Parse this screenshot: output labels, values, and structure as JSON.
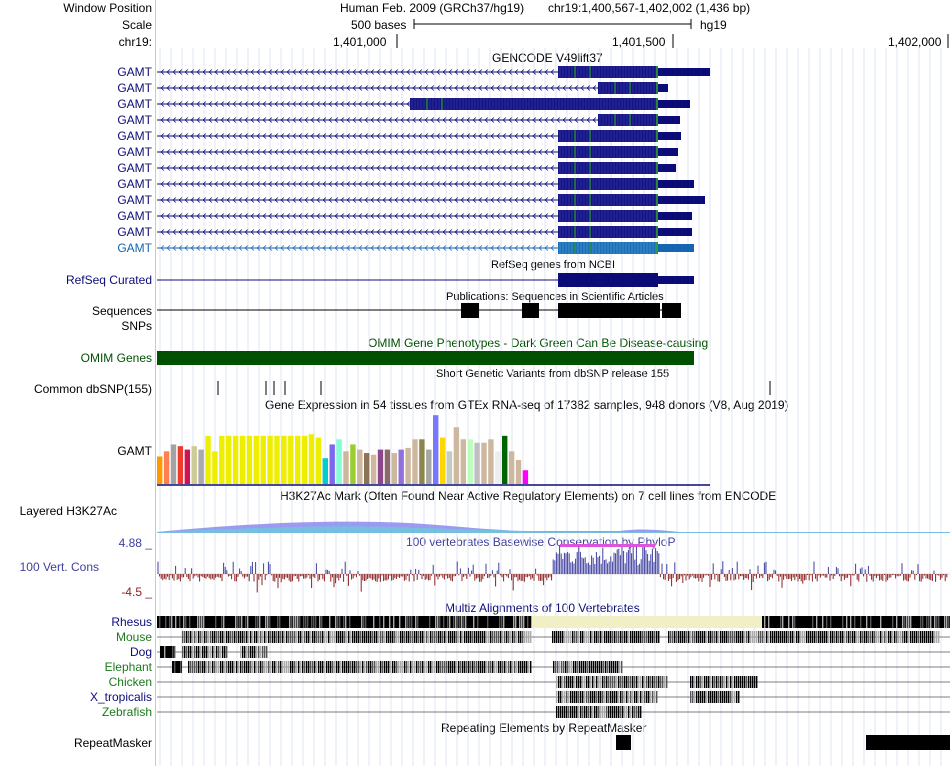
{
  "header": {
    "window_position_label": "Window Position",
    "scale_label": "Scale",
    "chrom_label": "chr19:",
    "assembly": "Human Feb. 2009 (GRCh37/hg19)",
    "position": "chr19:1,400,567-1,402,002 (1,436 bp)",
    "scale_text": "500 bases",
    "db": "hg19",
    "ticks": [
      "1,401,000",
      "1,401,500",
      "1,402,000"
    ]
  },
  "tracks": {
    "gencode": {
      "title": "GENCODE V49lift37",
      "labels": [
        "GAMT",
        "GAMT",
        "GAMT",
        "GAMT",
        "GAMT",
        "GAMT",
        "GAMT",
        "GAMT",
        "GAMT",
        "GAMT",
        "GAMT",
        "GAMT"
      ]
    },
    "refseq": {
      "label": "RefSeq Curated",
      "title": "RefSeq genes from NCBI"
    },
    "publications": {
      "label1": "Sequences",
      "label2": "SNPs",
      "title": "Publications: Sequences in Scientific Articles"
    },
    "omim": {
      "label": "OMIM Gene Phenotypes - Dark Green Can Be Disease-causing",
      "side": "OMIM Genes"
    },
    "dbsnp": {
      "label": "Common dbSNP(155)",
      "title": "Short Genetic Variants from dbSNP release 155"
    },
    "gtex": {
      "label": "GAMT",
      "title": "Gene Expression in 54 tissues from GTEx RNA-seq of 17382 samples, 948 donors (V8, Aug 2019)"
    },
    "h3k27ac": {
      "label": "Layered H3K27Ac",
      "title": "H3K27Ac Mark (Often Found Near Active Regulatory Elements) on 7 cell lines from ENCODE"
    },
    "phylop": {
      "label": "100 Vert. Cons",
      "max": "4.88 _",
      "min": "-4.5 _",
      "title": "100 vertebrates Basewise Conservation by PhyloP"
    },
    "multiz": {
      "title": "Multiz Alignments of 100 Vertebrates",
      "species": [
        "Rhesus",
        "Mouse",
        "Dog",
        "Elephant",
        "Chicken",
        "X_tropicalis",
        "Zebrafish"
      ]
    },
    "repeatmasker": {
      "label": "RepeatMasker",
      "title": "Repeating Elements by RepeatMasker"
    }
  },
  "colors": {
    "navy": "#0c0c78",
    "coding": "#141482",
    "green_exon": "#2aa02a",
    "light_blue": "#1565b0",
    "omim": "#005000",
    "phylop_pos": "#3f3f9f",
    "phylop_neg": "#8b2020",
    "multiz_highlight": "#f0efc6"
  },
  "gtex_values": [
    0.32,
    0.38,
    0.46,
    0.44,
    0.4,
    0.44,
    0.4,
    0.56,
    0.38,
    0.56,
    0.56,
    0.56,
    0.56,
    0.56,
    0.56,
    0.56,
    0.56,
    0.56,
    0.56,
    0.56,
    0.56,
    0.56,
    0.58,
    0.54,
    0.3,
    0.46,
    0.52,
    0.38,
    0.46,
    0.4,
    0.36,
    0.34,
    0.4,
    0.4,
    0.36,
    0.4,
    0.42,
    0.52,
    0.52,
    0.4,
    0.8,
    0.54,
    0.38,
    0.66,
    0.52,
    0.52,
    0.48,
    0.48,
    0.52,
    0.38,
    0.56,
    0.38,
    0.28,
    0.16
  ],
  "gtex_colors": [
    "#ff9900",
    "#ff7f50",
    "#a3a3a3",
    "#ef3b2c",
    "#ce1256",
    "#cccc99",
    "#aaaaaa",
    "#eeee00",
    "#eeee00",
    "#eeee00",
    "#eeee00",
    "#eeee00",
    "#eeee00",
    "#eeee00",
    "#eeee00",
    "#eeee00",
    "#eeee00",
    "#eeee00",
    "#eeee00",
    "#eeee00",
    "#eeee00",
    "#eeee00",
    "#eeee00",
    "#eeee00",
    "#00cdcd",
    "#7b68ee",
    "#7fffd4",
    "#cdb79e",
    "#9acd32",
    "#cdb79e",
    "#8b7355",
    "#cdb79e",
    "#8b4789",
    "#8b6969",
    "#cdb79e",
    "#9370db",
    "#cdb79e",
    "#cdb79e",
    "#8b864e",
    "#a6a6a6",
    "#7777ff",
    "#ffd700",
    "#c1cdc1",
    "#cdb79e",
    "#cdb79e",
    "#bbffbb",
    "#bfbfbf",
    "#cdb79e",
    "#cdb79e",
    "#eeeeee",
    "#006400",
    "#cdb79e",
    "#cdb79e",
    "#ff00ff"
  ]
}
